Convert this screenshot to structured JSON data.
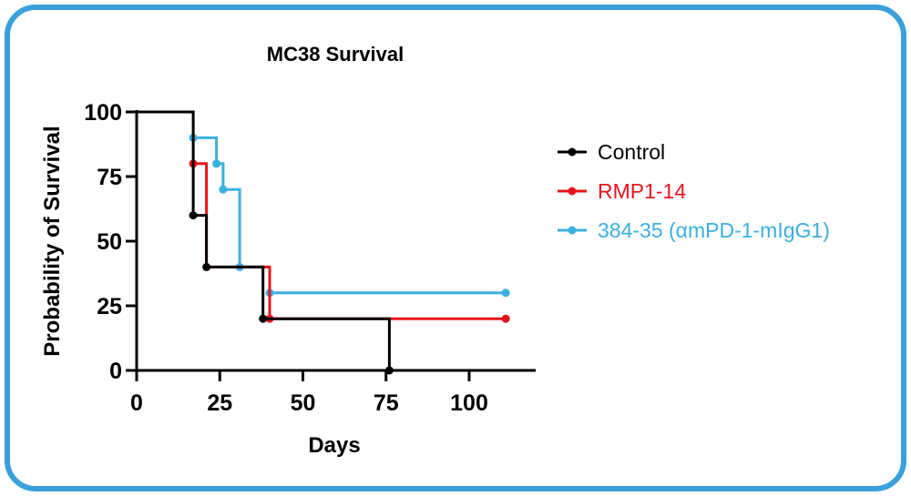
{
  "chart_data": {
    "type": "line",
    "step": true,
    "title": "MC38 Survival",
    "xlabel": "Days",
    "ylabel": "Probability of Survival",
    "xlim": [
      0,
      120
    ],
    "ylim": [
      0,
      100
    ],
    "xticks": [
      0,
      25,
      50,
      75,
      100
    ],
    "yticks": [
      0,
      25,
      50,
      75,
      100
    ],
    "grid": false,
    "legend_position": "right",
    "series": [
      {
        "name": "Control",
        "color": "#000000",
        "points": [
          [
            0,
            100
          ],
          [
            17,
            100
          ],
          [
            17,
            60
          ],
          [
            21,
            60
          ],
          [
            21,
            40
          ],
          [
            38,
            40
          ],
          [
            38,
            20
          ],
          [
            76,
            20
          ],
          [
            76,
            0
          ]
        ],
        "markers": [
          [
            17,
            60
          ],
          [
            21,
            40
          ],
          [
            38,
            20
          ],
          [
            76,
            0
          ]
        ]
      },
      {
        "name": "RMP1-14",
        "color": "#e8141c",
        "points": [
          [
            17,
            80
          ],
          [
            21,
            80
          ],
          [
            21,
            40
          ],
          [
            40,
            40
          ],
          [
            40,
            20
          ],
          [
            111,
            20
          ]
        ],
        "markers": [
          [
            17,
            80
          ],
          [
            40,
            20
          ],
          [
            111,
            20
          ]
        ]
      },
      {
        "name": "384-35 (αmPD-1-mIgG1)",
        "color": "#3bb0e0",
        "points": [
          [
            17,
            90
          ],
          [
            24,
            90
          ],
          [
            24,
            80
          ],
          [
            26,
            80
          ],
          [
            26,
            70
          ],
          [
            31,
            70
          ],
          [
            31,
            40
          ],
          [
            40,
            40
          ],
          [
            40,
            30
          ],
          [
            111,
            30
          ]
        ],
        "markers": [
          [
            17,
            90
          ],
          [
            24,
            80
          ],
          [
            26,
            70
          ],
          [
            31,
            40
          ],
          [
            40,
            30
          ],
          [
            111,
            30
          ]
        ]
      }
    ]
  }
}
